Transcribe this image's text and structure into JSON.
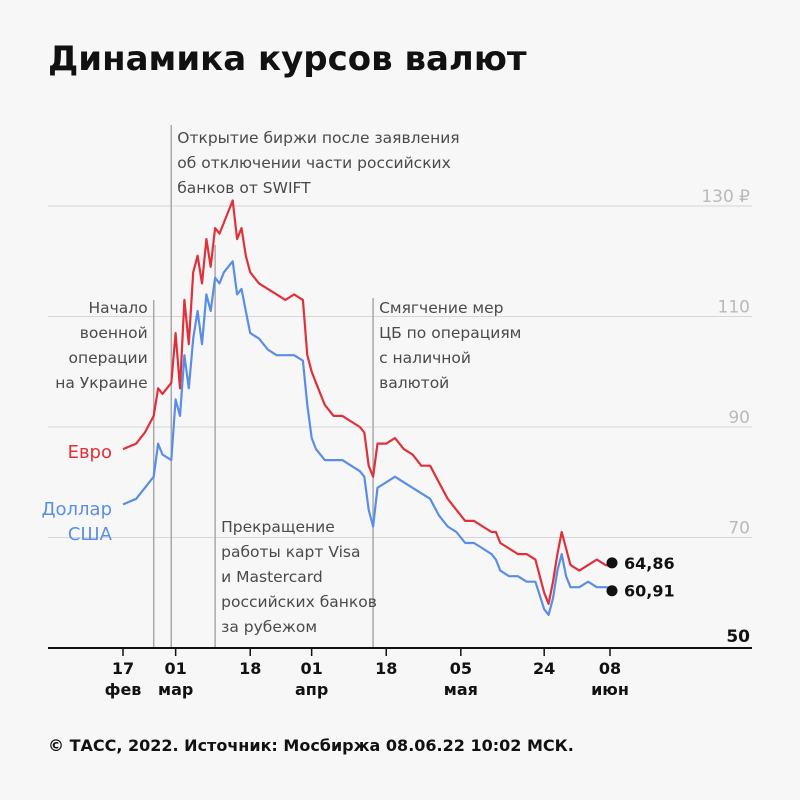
{
  "title": "Динамика курсов валют",
  "footer": "© ТАСС, 2022. Источник: Мосбиржа 08.06.22 10:02 МСК.",
  "colors": {
    "euro": "#e0303a",
    "usd": "#5a8ee6",
    "grid": "#d6d6d6",
    "event_line": "#a9a9a9",
    "axis": "#111111"
  },
  "chart_data": {
    "type": "line",
    "title": "Динамика курсов валют",
    "x_range": [
      "2022-02-17",
      "2022-06-08"
    ],
    "y_range": [
      50,
      130
    ],
    "grid": true,
    "y_ticks": [
      {
        "value": 130,
        "label": "130 ₽"
      },
      {
        "value": 110,
        "label": "110"
      },
      {
        "value": 90,
        "label": "90"
      },
      {
        "value": 70,
        "label": "70"
      },
      {
        "value": 50,
        "label": "50"
      }
    ],
    "x_ticks": [
      {
        "date": "2022-02-17",
        "day": "17",
        "month": "фев"
      },
      {
        "date": "2022-03-01",
        "day": "01",
        "month": "мар"
      },
      {
        "date": "2022-03-18",
        "day": "18",
        "month": ""
      },
      {
        "date": "2022-04-01",
        "day": "01",
        "month": "апр"
      },
      {
        "date": "2022-04-18",
        "day": "18",
        "month": ""
      },
      {
        "date": "2022-05-05",
        "day": "05",
        "month": "мая"
      },
      {
        "date": "2022-05-24",
        "day": "24",
        "month": ""
      },
      {
        "date": "2022-06-08",
        "day": "08",
        "month": "июн"
      }
    ],
    "series": [
      {
        "name": "Евро",
        "label_lines": [
          "Евро"
        ],
        "color": "#e0303a",
        "end_label": "64,86",
        "points": [
          [
            "2022-02-17",
            86
          ],
          [
            "2022-02-20",
            87
          ],
          [
            "2022-02-22",
            89
          ],
          [
            "2022-02-24",
            92
          ],
          [
            "2022-02-25",
            97
          ],
          [
            "2022-02-26",
            96
          ],
          [
            "2022-02-28",
            98
          ],
          [
            "2022-03-01",
            107
          ],
          [
            "2022-03-02",
            97
          ],
          [
            "2022-03-03",
            113
          ],
          [
            "2022-03-04",
            105
          ],
          [
            "2022-03-05",
            118
          ],
          [
            "2022-03-06",
            121
          ],
          [
            "2022-03-07",
            116
          ],
          [
            "2022-03-08",
            124
          ],
          [
            "2022-03-09",
            119
          ],
          [
            "2022-03-10",
            126
          ],
          [
            "2022-03-11",
            125
          ],
          [
            "2022-03-12",
            127
          ],
          [
            "2022-03-14",
            131
          ],
          [
            "2022-03-15",
            124
          ],
          [
            "2022-03-16",
            126
          ],
          [
            "2022-03-17",
            121
          ],
          [
            "2022-03-18",
            118
          ],
          [
            "2022-03-20",
            116
          ],
          [
            "2022-03-22",
            115
          ],
          [
            "2022-03-24",
            114
          ],
          [
            "2022-03-26",
            113
          ],
          [
            "2022-03-28",
            114
          ],
          [
            "2022-03-30",
            113
          ],
          [
            "2022-03-31",
            103
          ],
          [
            "2022-04-01",
            100
          ],
          [
            "2022-04-02",
            98
          ],
          [
            "2022-04-04",
            94
          ],
          [
            "2022-04-06",
            92
          ],
          [
            "2022-04-08",
            92
          ],
          [
            "2022-04-10",
            91
          ],
          [
            "2022-04-12",
            90
          ],
          [
            "2022-04-13",
            89
          ],
          [
            "2022-04-14",
            83
          ],
          [
            "2022-04-15",
            81
          ],
          [
            "2022-04-16",
            87
          ],
          [
            "2022-04-18",
            87
          ],
          [
            "2022-04-20",
            88
          ],
          [
            "2022-04-22",
            86
          ],
          [
            "2022-04-24",
            85
          ],
          [
            "2022-04-26",
            83
          ],
          [
            "2022-04-28",
            83
          ],
          [
            "2022-04-30",
            80
          ],
          [
            "2022-05-02",
            77
          ],
          [
            "2022-05-04",
            75
          ],
          [
            "2022-05-06",
            73
          ],
          [
            "2022-05-08",
            73
          ],
          [
            "2022-05-10",
            72
          ],
          [
            "2022-05-12",
            71
          ],
          [
            "2022-05-13",
            71
          ],
          [
            "2022-05-14",
            69
          ],
          [
            "2022-05-16",
            68
          ],
          [
            "2022-05-18",
            67
          ],
          [
            "2022-05-20",
            67
          ],
          [
            "2022-05-22",
            66
          ],
          [
            "2022-05-24",
            60
          ],
          [
            "2022-05-25",
            58
          ],
          [
            "2022-05-26",
            62
          ],
          [
            "2022-05-27",
            67
          ],
          [
            "2022-05-28",
            71
          ],
          [
            "2022-05-29",
            68
          ],
          [
            "2022-05-30",
            65
          ],
          [
            "2022-06-01",
            64
          ],
          [
            "2022-06-03",
            65
          ],
          [
            "2022-06-05",
            66
          ],
          [
            "2022-06-07",
            65
          ],
          [
            "2022-06-08",
            64.86
          ]
        ]
      },
      {
        "name": "Доллар США",
        "label_lines": [
          "Доллар",
          "США"
        ],
        "color": "#5a8ee6",
        "end_label": "60,91",
        "points": [
          [
            "2022-02-17",
            76
          ],
          [
            "2022-02-20",
            77
          ],
          [
            "2022-02-22",
            79
          ],
          [
            "2022-02-24",
            81
          ],
          [
            "2022-02-25",
            87
          ],
          [
            "2022-02-26",
            85
          ],
          [
            "2022-02-28",
            84
          ],
          [
            "2022-03-01",
            95
          ],
          [
            "2022-03-02",
            92
          ],
          [
            "2022-03-03",
            103
          ],
          [
            "2022-03-04",
            97
          ],
          [
            "2022-03-05",
            106
          ],
          [
            "2022-03-06",
            111
          ],
          [
            "2022-03-07",
            105
          ],
          [
            "2022-03-08",
            114
          ],
          [
            "2022-03-09",
            111
          ],
          [
            "2022-03-10",
            117
          ],
          [
            "2022-03-11",
            116
          ],
          [
            "2022-03-12",
            118
          ],
          [
            "2022-03-14",
            120
          ],
          [
            "2022-03-15",
            114
          ],
          [
            "2022-03-16",
            115
          ],
          [
            "2022-03-17",
            111
          ],
          [
            "2022-03-18",
            107
          ],
          [
            "2022-03-20",
            106
          ],
          [
            "2022-03-22",
            104
          ],
          [
            "2022-03-24",
            103
          ],
          [
            "2022-03-26",
            103
          ],
          [
            "2022-03-28",
            103
          ],
          [
            "2022-03-30",
            102
          ],
          [
            "2022-03-31",
            94
          ],
          [
            "2022-04-01",
            88
          ],
          [
            "2022-04-02",
            86
          ],
          [
            "2022-04-04",
            84
          ],
          [
            "2022-04-06",
            84
          ],
          [
            "2022-04-08",
            84
          ],
          [
            "2022-04-10",
            83
          ],
          [
            "2022-04-12",
            82
          ],
          [
            "2022-04-13",
            81
          ],
          [
            "2022-04-14",
            75
          ],
          [
            "2022-04-15",
            72
          ],
          [
            "2022-04-16",
            79
          ],
          [
            "2022-04-18",
            80
          ],
          [
            "2022-04-20",
            81
          ],
          [
            "2022-04-22",
            80
          ],
          [
            "2022-04-24",
            79
          ],
          [
            "2022-04-26",
            78
          ],
          [
            "2022-04-28",
            77
          ],
          [
            "2022-04-30",
            74
          ],
          [
            "2022-05-02",
            72
          ],
          [
            "2022-05-04",
            71
          ],
          [
            "2022-05-06",
            69
          ],
          [
            "2022-05-08",
            69
          ],
          [
            "2022-05-10",
            68
          ],
          [
            "2022-05-12",
            67
          ],
          [
            "2022-05-13",
            66
          ],
          [
            "2022-05-14",
            64
          ],
          [
            "2022-05-16",
            63
          ],
          [
            "2022-05-18",
            63
          ],
          [
            "2022-05-20",
            62
          ],
          [
            "2022-05-22",
            62
          ],
          [
            "2022-05-24",
            57
          ],
          [
            "2022-05-25",
            56
          ],
          [
            "2022-05-26",
            59
          ],
          [
            "2022-05-27",
            64
          ],
          [
            "2022-05-28",
            67
          ],
          [
            "2022-05-29",
            63
          ],
          [
            "2022-05-30",
            61
          ],
          [
            "2022-06-01",
            61
          ],
          [
            "2022-06-03",
            62
          ],
          [
            "2022-06-05",
            61
          ],
          [
            "2022-06-07",
            61
          ],
          [
            "2022-06-08",
            60.91
          ]
        ]
      }
    ],
    "annotations": [
      {
        "date": "2022-02-24",
        "lines": [
          "Начало",
          "военной",
          "операции",
          "на Украине"
        ]
      },
      {
        "date": "2022-02-28",
        "lines": [
          "Открытие биржи после заявления",
          "об отключении части российских",
          "банков от SWIFT"
        ]
      },
      {
        "date": "2022-03-10",
        "lines": [
          "Прекращение",
          "работы карт Visa",
          "и Mastercard",
          "российских банков",
          "за рубежом"
        ]
      },
      {
        "date": "2022-04-15",
        "lines": [
          "Смягчение мер",
          "ЦБ по операциям",
          "с наличной",
          "валютой"
        ]
      }
    ]
  }
}
